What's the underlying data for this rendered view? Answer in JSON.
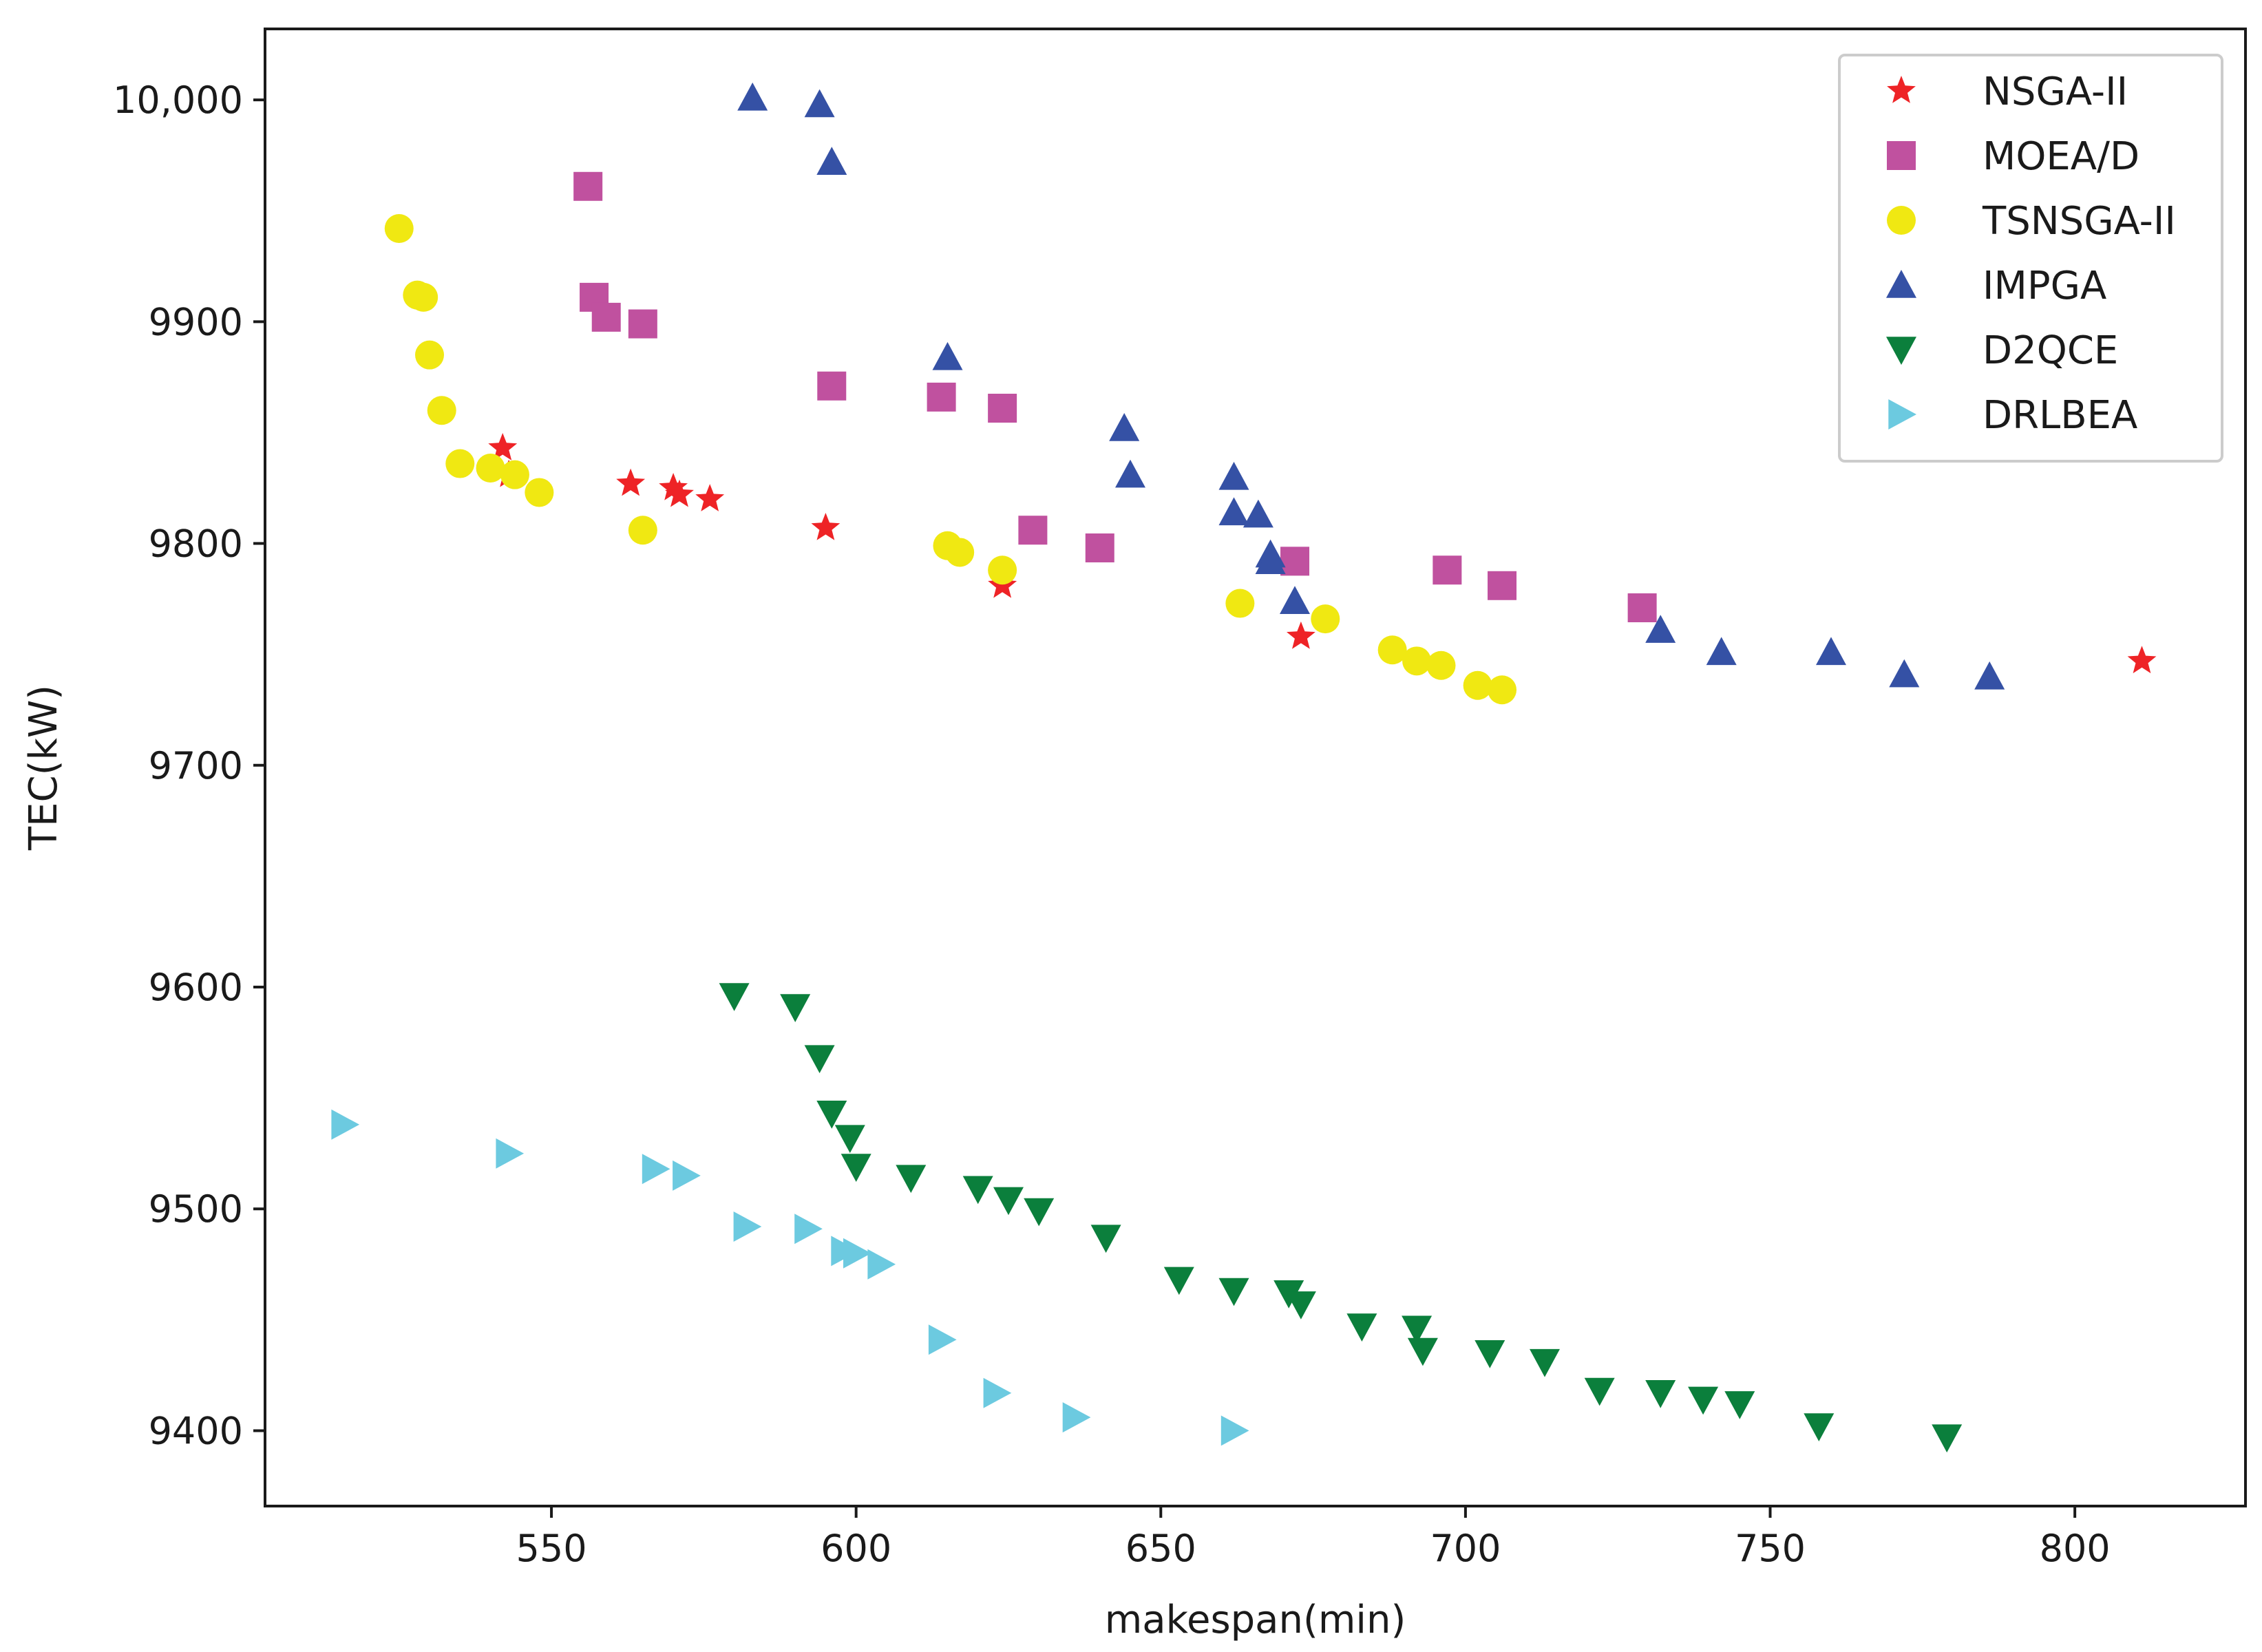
{
  "chart_data": {
    "type": "scatter",
    "title": "",
    "xlabel": "makespan(min)",
    "ylabel": "TEC(kW)",
    "xlim": [
      503,
      828
    ],
    "ylim": [
      9366,
      10032
    ],
    "xticks": [
      550,
      600,
      650,
      700,
      750,
      800
    ],
    "xtick_labels": [
      "550",
      "600",
      "650",
      "700",
      "750",
      "800"
    ],
    "yticks": [
      9400,
      9500,
      9600,
      9700,
      9800,
      9900,
      10000
    ],
    "ytick_labels": [
      "9400",
      "9500",
      "9600",
      "9700",
      "9800",
      "9900",
      "10,000"
    ],
    "grid": false,
    "legend_position": "top-right",
    "series": [
      {
        "name": "NSGA-II",
        "marker": "star",
        "color": "#ee2326",
        "points": [
          [
            542,
            9843
          ],
          [
            543,
            9831
          ],
          [
            563,
            9827
          ],
          [
            570,
            9825
          ],
          [
            571,
            9822
          ],
          [
            576,
            9820
          ],
          [
            595,
            9807
          ],
          [
            624,
            9781
          ],
          [
            673,
            9758
          ],
          [
            811,
            9747
          ]
        ]
      },
      {
        "name": "MOEA/D",
        "marker": "square",
        "color": "#c0519f",
        "points": [
          [
            556,
            9961
          ],
          [
            557,
            9911
          ],
          [
            559,
            9902
          ],
          [
            565,
            9899
          ],
          [
            596,
            9871
          ],
          [
            614,
            9866
          ],
          [
            624,
            9861
          ],
          [
            629,
            9806
          ],
          [
            640,
            9798
          ],
          [
            672,
            9792
          ],
          [
            697,
            9788
          ],
          [
            706,
            9781
          ],
          [
            729,
            9771
          ]
        ]
      },
      {
        "name": "TSNSGA-II",
        "marker": "circle",
        "color": "#f0e812",
        "points": [
          [
            525,
            9942
          ],
          [
            528,
            9912
          ],
          [
            529,
            9911
          ],
          [
            530,
            9885
          ],
          [
            532,
            9860
          ],
          [
            535,
            9836
          ],
          [
            540,
            9834
          ],
          [
            544,
            9831
          ],
          [
            548,
            9823
          ],
          [
            565,
            9806
          ],
          [
            615,
            9799
          ],
          [
            617,
            9796
          ],
          [
            624,
            9788
          ],
          [
            663,
            9773
          ],
          [
            677,
            9766
          ],
          [
            688,
            9752
          ],
          [
            692,
            9747
          ],
          [
            696,
            9745
          ],
          [
            702,
            9736
          ],
          [
            706,
            9734
          ]
        ]
      },
      {
        "name": "IMPGA",
        "marker": "triangle-up",
        "color": "#3551a5",
        "points": [
          [
            583,
            10001
          ],
          [
            594,
            9998
          ],
          [
            596,
            9972
          ],
          [
            615,
            9884
          ],
          [
            644,
            9852
          ],
          [
            645,
            9831
          ],
          [
            662,
            9830
          ],
          [
            662,
            9814
          ],
          [
            666,
            9813
          ],
          [
            668,
            9795
          ],
          [
            668,
            9792
          ],
          [
            672,
            9774
          ],
          [
            732,
            9761
          ],
          [
            742,
            9751
          ],
          [
            760,
            9751
          ],
          [
            772,
            9741
          ],
          [
            786,
            9740
          ]
        ]
      },
      {
        "name": "D2QCE",
        "marker": "triangle-down",
        "color": "#0b7f3c",
        "points": [
          [
            580,
            9596
          ],
          [
            590,
            9591
          ],
          [
            594,
            9568
          ],
          [
            596,
            9543
          ],
          [
            599,
            9532
          ],
          [
            600,
            9519
          ],
          [
            609,
            9514
          ],
          [
            620,
            9509
          ],
          [
            625,
            9504
          ],
          [
            630,
            9499
          ],
          [
            641,
            9487
          ],
          [
            653,
            9468
          ],
          [
            662,
            9463
          ],
          [
            671,
            9462
          ],
          [
            673,
            9457
          ],
          [
            683,
            9447
          ],
          [
            692,
            9446
          ],
          [
            693,
            9436
          ],
          [
            704,
            9435
          ],
          [
            713,
            9431
          ],
          [
            722,
            9418
          ],
          [
            732,
            9417
          ],
          [
            739,
            9414
          ],
          [
            745,
            9412
          ],
          [
            758,
            9402
          ],
          [
            779,
            9397
          ]
        ]
      },
      {
        "name": "DRLBEA",
        "marker": "triangle-right",
        "color": "#6ccae0",
        "points": [
          [
            516,
            9538
          ],
          [
            543,
            9525
          ],
          [
            567,
            9518
          ],
          [
            572,
            9515
          ],
          [
            582,
            9492
          ],
          [
            592,
            9491
          ],
          [
            598,
            9481
          ],
          [
            600,
            9480
          ],
          [
            604,
            9475
          ],
          [
            614,
            9441
          ],
          [
            623,
            9417
          ],
          [
            636,
            9406
          ],
          [
            662,
            9400
          ]
        ]
      }
    ]
  }
}
